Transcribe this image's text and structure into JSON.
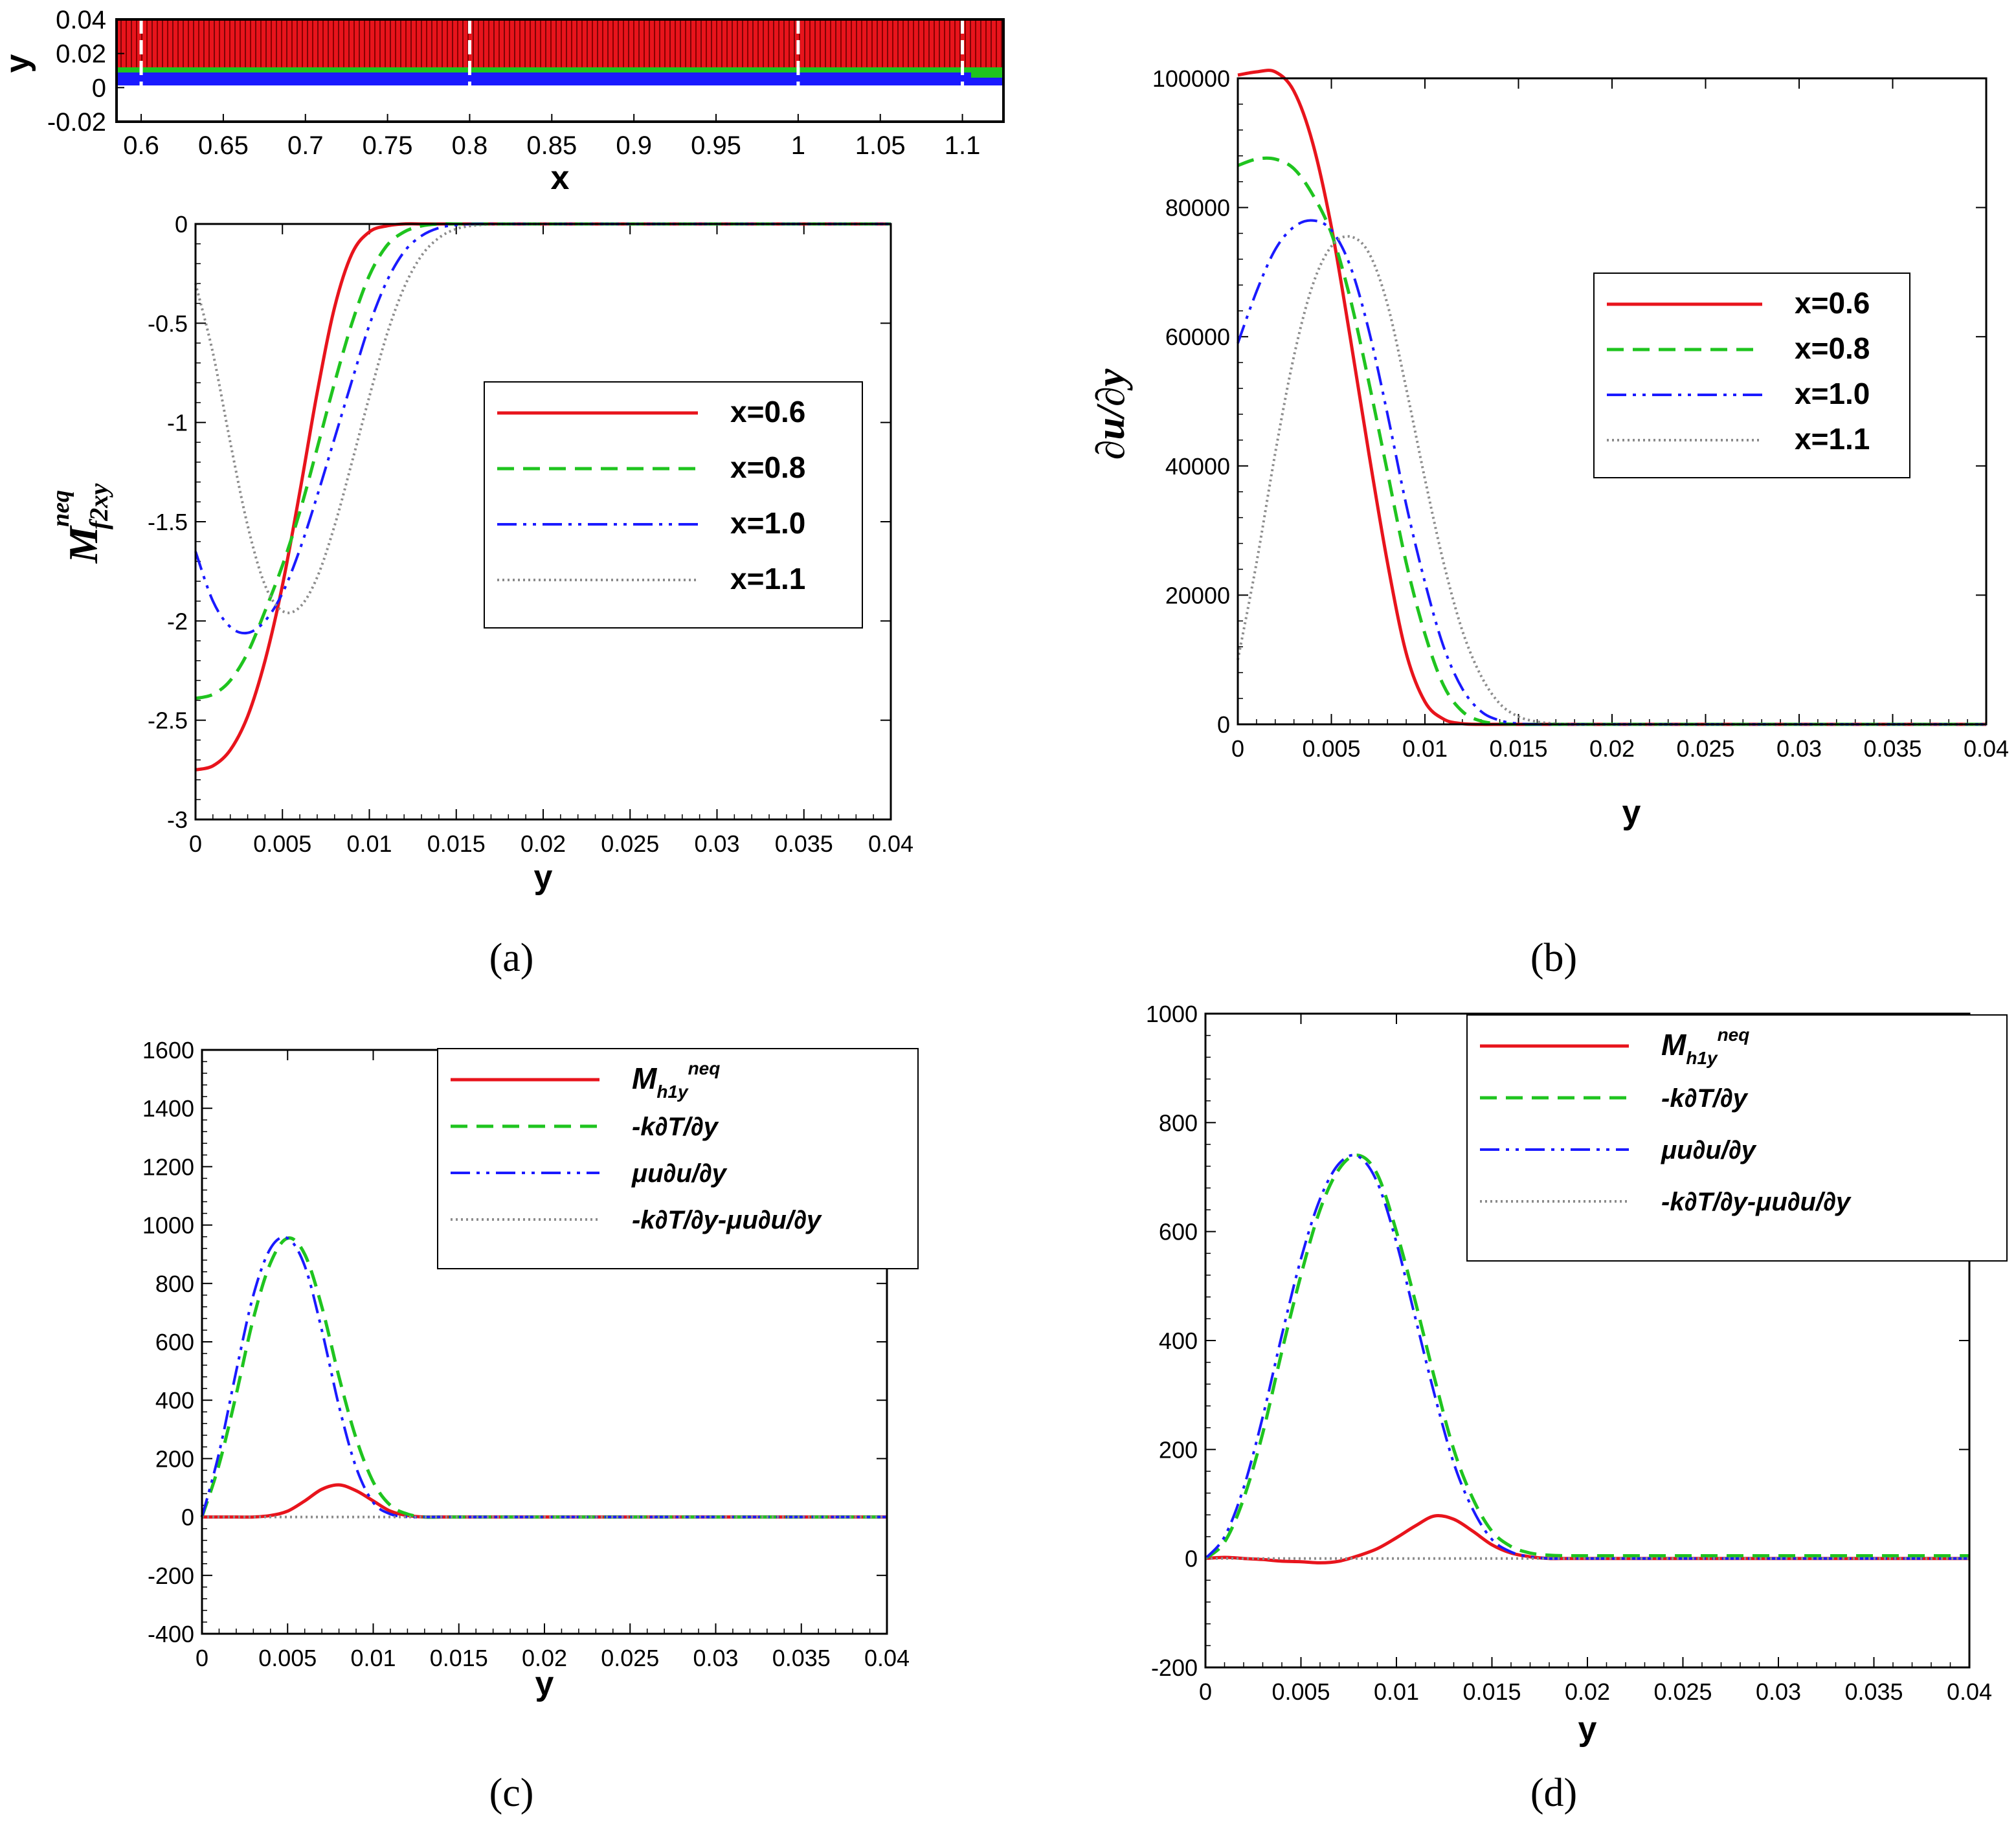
{
  "captions": [
    "(a)",
    "(b)",
    "(c)",
    "(d)"
  ],
  "colors": {
    "red": "#e8141c",
    "green": "#1fc41f",
    "blue": "#1a1aff",
    "gray": "#8c8c8c",
    "dark_red": "#8b0000"
  },
  "chart_data": [
    {
      "id": "inset",
      "type": "heatmap",
      "title": "",
      "xlabel": "x",
      "ylabel": "y",
      "xlim": [
        0.585,
        1.125
      ],
      "ylim": [
        -0.02,
        0.04
      ],
      "xticks": [
        "0.6",
        "0.65",
        "0.7",
        "0.75",
        "0.8",
        "0.85",
        "0.9",
        "0.95",
        "1",
        "1.05",
        "1.1"
      ],
      "yticks": [
        "0.04",
        "0.02",
        "0",
        "-0.02"
      ],
      "marked_x_positions": [
        0.6,
        0.8,
        1.0,
        1.1
      ],
      "grid": false
    },
    {
      "id": "a",
      "type": "line",
      "caption": "(a)",
      "xlabel": "y",
      "ylabel": "M_f2xy^neq",
      "ylabel_main": "M",
      "ylabel_sub": "f2xy",
      "ylabel_sup": "neq",
      "xlim": [
        0,
        0.04
      ],
      "ylim": [
        -3,
        0
      ],
      "xticks": [
        "0",
        "0.005",
        "0.01",
        "0.015",
        "0.02",
        "0.025",
        "0.03",
        "0.035",
        "0.04"
      ],
      "yticks": [
        "0",
        "-0.5",
        "-1",
        "-1.5",
        "-2",
        "-2.5",
        "-3"
      ],
      "legend": "right",
      "x": [
        0,
        0.001,
        0.002,
        0.003,
        0.004,
        0.005,
        0.006,
        0.007,
        0.008,
        0.009,
        0.01,
        0.011,
        0.012,
        0.013,
        0.014,
        0.015,
        0.016,
        0.017,
        0.018,
        0.02,
        0.025,
        0.03,
        0.035,
        0.04
      ],
      "series": [
        {
          "name": "x=0.6",
          "values": [
            -2.75,
            -2.73,
            -2.65,
            -2.48,
            -2.2,
            -1.82,
            -1.35,
            -0.85,
            -0.42,
            -0.15,
            -0.04,
            -0.01,
            0,
            0,
            0,
            0,
            0,
            0,
            0,
            0,
            0,
            0,
            0,
            0
          ]
        },
        {
          "name": "x=0.8",
          "values": [
            -2.39,
            -2.37,
            -2.3,
            -2.16,
            -1.95,
            -1.72,
            -1.45,
            -1.13,
            -0.8,
            -0.5,
            -0.26,
            -0.11,
            -0.04,
            -0.01,
            0,
            0,
            0,
            0,
            0,
            0,
            0,
            0,
            0,
            0
          ]
        },
        {
          "name": "x=1.0",
          "values": [
            -1.65,
            -1.9,
            -2.03,
            -2.06,
            -2.0,
            -1.86,
            -1.64,
            -1.37,
            -1.08,
            -0.79,
            -0.51,
            -0.29,
            -0.14,
            -0.06,
            -0.02,
            -0.005,
            0,
            0,
            0,
            0,
            0,
            0,
            0,
            0
          ]
        },
        {
          "name": "x=1.1",
          "values": [
            -0.3,
            -0.65,
            -1.1,
            -1.52,
            -1.82,
            -1.95,
            -1.93,
            -1.78,
            -1.52,
            -1.2,
            -0.87,
            -0.56,
            -0.32,
            -0.16,
            -0.07,
            -0.025,
            -0.008,
            -0.002,
            0,
            0,
            0,
            0,
            0,
            0
          ]
        }
      ]
    },
    {
      "id": "b",
      "type": "line",
      "caption": "(b)",
      "xlabel": "y",
      "ylabel": "∂u/∂y",
      "xlim": [
        0,
        0.04
      ],
      "ylim": [
        0,
        100000
      ],
      "xticks": [
        "0",
        "0.005",
        "0.01",
        "0.015",
        "0.02",
        "0.025",
        "0.03",
        "0.035",
        "0.04"
      ],
      "yticks": [
        "100000",
        "80000",
        "60000",
        "40000",
        "20000",
        "0"
      ],
      "legend": "right",
      "x": [
        0,
        0.001,
        0.002,
        0.003,
        0.004,
        0.005,
        0.006,
        0.007,
        0.008,
        0.009,
        0.01,
        0.011,
        0.012,
        0.013,
        0.014,
        0.015,
        0.016,
        0.017,
        0.018,
        0.02,
        0.025,
        0.03,
        0.035,
        0.04
      ],
      "series": [
        {
          "name": "x=0.6",
          "values": [
            100500,
            101000,
            101000,
            98000,
            90000,
            77000,
            60000,
            42000,
            25000,
            11000,
            3500,
            800,
            100,
            0,
            0,
            0,
            0,
            0,
            0,
            0,
            0,
            0,
            0,
            0
          ]
        },
        {
          "name": "x=0.8",
          "values": [
            86500,
            87500,
            87500,
            86000,
            82000,
            76000,
            66000,
            53000,
            39000,
            25000,
            14000,
            6000,
            2000,
            500,
            100,
            0,
            0,
            0,
            0,
            0,
            0,
            0,
            0,
            0
          ]
        },
        {
          "name": "x=1.0",
          "values": [
            59000,
            67000,
            73500,
            77000,
            78000,
            76500,
            71000,
            61000,
            48000,
            34000,
            22000,
            12000,
            5500,
            2000,
            600,
            100,
            0,
            0,
            0,
            0,
            0,
            0,
            0,
            0
          ]
        },
        {
          "name": "x=1.1",
          "values": [
            10000,
            25000,
            42000,
            57000,
            68000,
            74000,
            75500,
            73000,
            65000,
            52000,
            38000,
            25000,
            14500,
            7500,
            3200,
            1200,
            400,
            100,
            0,
            0,
            0,
            0,
            0,
            0
          ]
        }
      ]
    },
    {
      "id": "c",
      "type": "line",
      "caption": "(c)",
      "xlabel": "y",
      "ylabel": "",
      "xlim": [
        0,
        0.04
      ],
      "ylim": [
        -400,
        1600
      ],
      "xticks": [
        "0",
        "0.005",
        "0.01",
        "0.015",
        "0.02",
        "0.025",
        "0.03",
        "0.035",
        "0.04"
      ],
      "yticks": [
        "1600",
        "1400",
        "1200",
        "1000",
        "800",
        "600",
        "400",
        "200",
        "0",
        "-200",
        "-400"
      ],
      "legend": "top-right",
      "x": [
        0,
        0.001,
        0.002,
        0.003,
        0.004,
        0.005,
        0.006,
        0.007,
        0.008,
        0.009,
        0.01,
        0.011,
        0.012,
        0.013,
        0.014,
        0.015,
        0.016,
        0.018,
        0.02,
        0.025,
        0.03,
        0.035,
        0.04
      ],
      "series": [
        {
          "name": "M_h1y^neq",
          "values": [
            0,
            0,
            0,
            0,
            5,
            20,
            55,
            95,
            110,
            90,
            55,
            20,
            5,
            0,
            0,
            0,
            0,
            0,
            0,
            0,
            0,
            0,
            0
          ]
        },
        {
          "name": "-k∂T/∂y",
          "values": [
            0,
            180,
            420,
            680,
            870,
            955,
            900,
            720,
            480,
            270,
            120,
            40,
            10,
            0,
            0,
            0,
            0,
            0,
            0,
            0,
            0,
            0,
            0
          ]
        },
        {
          "name": "μu∂u/∂y",
          "values": [
            0,
            220,
            500,
            760,
            920,
            955,
            860,
            640,
            380,
            170,
            50,
            10,
            0,
            0,
            0,
            0,
            0,
            0,
            0,
            0,
            0,
            0,
            0
          ]
        },
        {
          "name": "-k∂T/∂y-μu∂u/∂y",
          "values": [
            0,
            0,
            0,
            0,
            0,
            0,
            0,
            0,
            0,
            0,
            0,
            0,
            0,
            0,
            0,
            0,
            0,
            0,
            0,
            0,
            0,
            0,
            0
          ]
        }
      ]
    },
    {
      "id": "d",
      "type": "line",
      "caption": "(d)",
      "xlabel": "y",
      "ylabel": "",
      "xlim": [
        0,
        0.04
      ],
      "ylim": [
        -200,
        1000
      ],
      "xticks": [
        "0",
        "0.005",
        "0.01",
        "0.015",
        "0.02",
        "0.025",
        "0.03",
        "0.035",
        "0.04"
      ],
      "yticks": [
        "1000",
        "800",
        "600",
        "400",
        "200",
        "0",
        "-200"
      ],
      "legend": "top-right",
      "x": [
        0,
        0.001,
        0.002,
        0.003,
        0.004,
        0.005,
        0.006,
        0.007,
        0.008,
        0.009,
        0.01,
        0.011,
        0.012,
        0.013,
        0.014,
        0.015,
        0.016,
        0.017,
        0.018,
        0.019,
        0.02,
        0.025,
        0.03,
        0.035,
        0.04
      ],
      "series": [
        {
          "name": "M_h1y^neq",
          "values": [
            0,
            2,
            0,
            -2,
            -5,
            -6,
            -8,
            -5,
            5,
            18,
            38,
            60,
            78,
            72,
            50,
            25,
            10,
            3,
            0,
            0,
            0,
            0,
            0,
            0,
            0
          ]
        },
        {
          "name": "-k∂T/∂y",
          "values": [
            0,
            30,
            110,
            230,
            380,
            520,
            640,
            715,
            740,
            705,
            600,
            470,
            330,
            200,
            110,
            50,
            22,
            10,
            6,
            5,
            5,
            5,
            5,
            5,
            5
          ]
        },
        {
          "name": "μu∂u/∂y",
          "values": [
            0,
            40,
            130,
            260,
            410,
            550,
            660,
            725,
            738,
            690,
            580,
            440,
            300,
            175,
            90,
            35,
            12,
            3,
            0,
            0,
            0,
            0,
            0,
            0,
            0
          ]
        },
        {
          "name": "-k∂T/∂y-μu∂u/∂y",
          "values": [
            0,
            0,
            0,
            0,
            0,
            0,
            0,
            0,
            0,
            0,
            0,
            0,
            0,
            0,
            0,
            0,
            0,
            0,
            0,
            0,
            0,
            0,
            0,
            0,
            0
          ]
        }
      ]
    }
  ]
}
